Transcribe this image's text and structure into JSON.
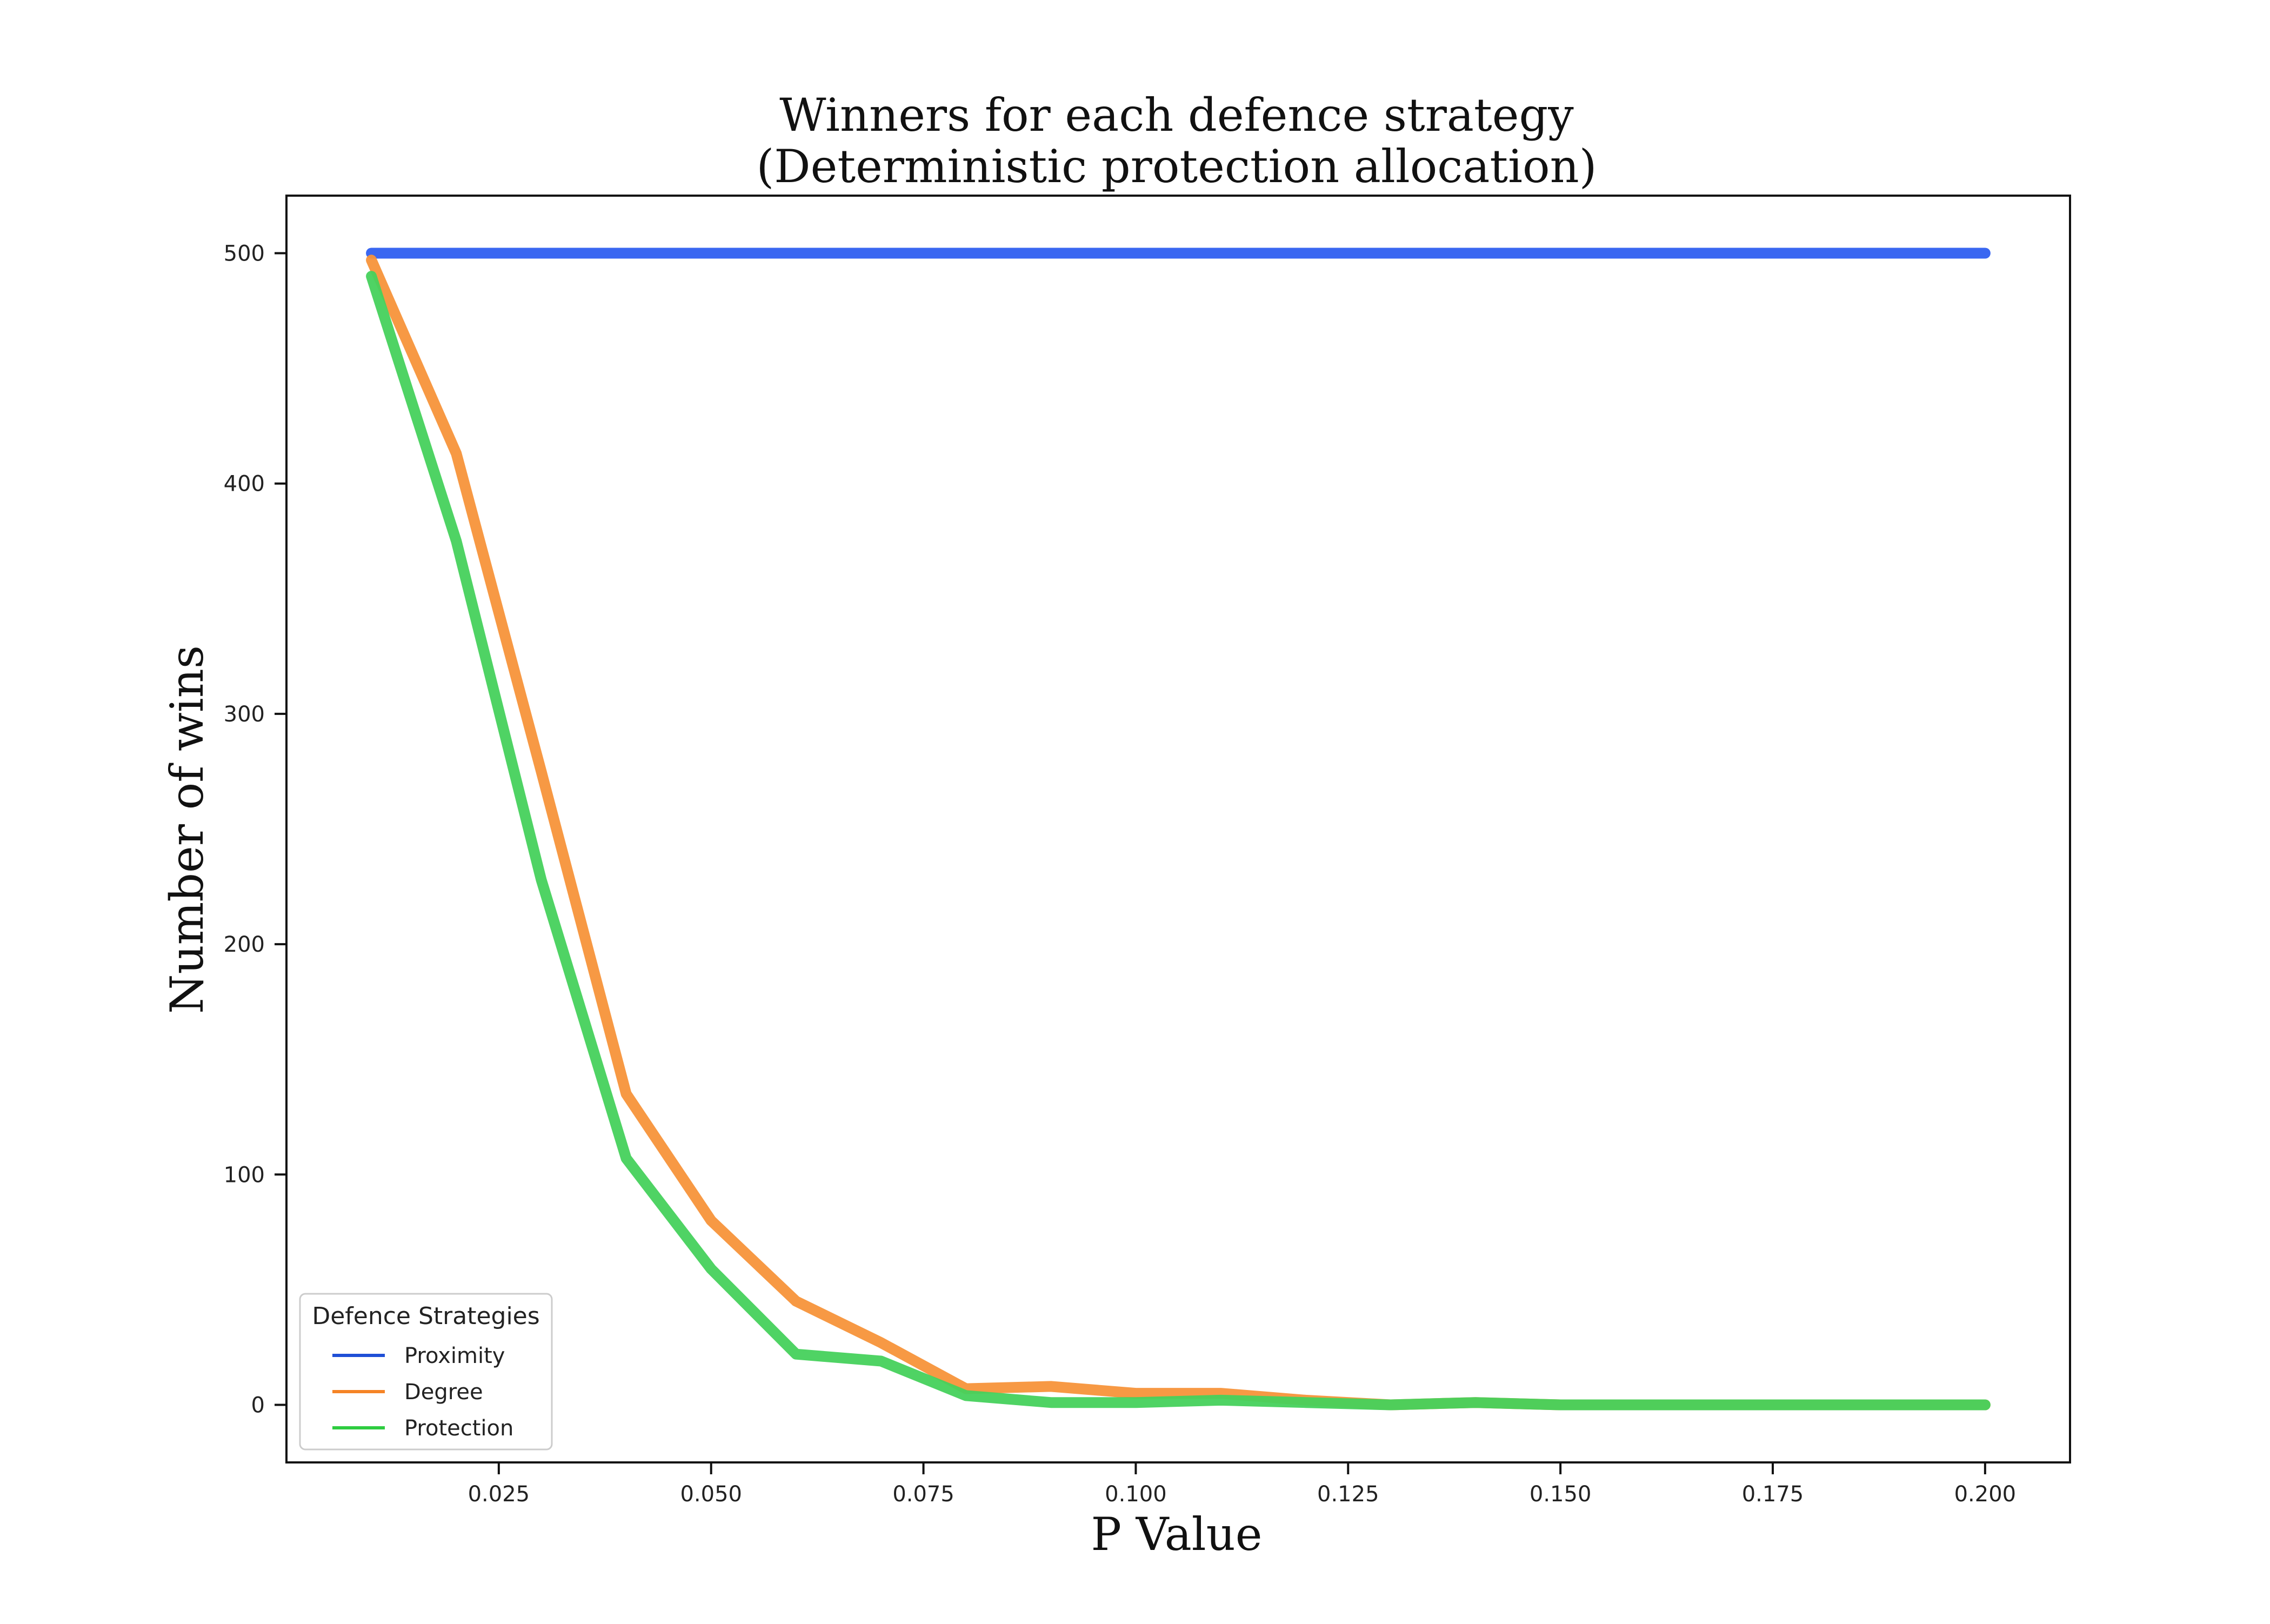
{
  "chart_data": {
    "type": "line",
    "title": "Winners for each defence strategy",
    "subtitle": "(Deterministic protection allocation)",
    "xlabel": "P Value",
    "ylabel": "Number of wins",
    "xlim": [
      0.0,
      0.21
    ],
    "ylim": [
      -25,
      525
    ],
    "xticks": [
      0.025,
      0.05,
      0.075,
      0.1,
      0.125,
      0.15,
      0.175,
      0.2
    ],
    "xtick_labels": [
      "0.025",
      "0.050",
      "0.075",
      "0.100",
      "0.125",
      "0.150",
      "0.175",
      "0.200"
    ],
    "yticks": [
      0,
      100,
      200,
      300,
      400,
      500
    ],
    "ytick_labels": [
      "0",
      "100",
      "200",
      "300",
      "400",
      "500"
    ],
    "grid": false,
    "legend": {
      "title": "Defence Strategies",
      "placement": "lower-left"
    },
    "x": [
      0.01,
      0.02,
      0.03,
      0.04,
      0.05,
      0.06,
      0.07,
      0.08,
      0.09,
      0.1,
      0.11,
      0.12,
      0.13,
      0.14,
      0.15,
      0.16,
      0.17,
      0.18,
      0.19,
      0.2
    ],
    "series": [
      {
        "name": "Proximity",
        "color": "#2f5ff0",
        "legend_color": "#1f4fd6",
        "values": [
          500,
          500,
          500,
          500,
          500,
          500,
          500,
          500,
          500,
          500,
          500,
          500,
          500,
          500,
          500,
          500,
          500,
          500,
          500,
          500
        ]
      },
      {
        "name": "Degree",
        "color": "#f7943a",
        "legend_color": "#f58426",
        "values": [
          497,
          413,
          275,
          135,
          80,
          45,
          27,
          7,
          8,
          5,
          5,
          2,
          0,
          1,
          0,
          0,
          0,
          0,
          0,
          0
        ]
      },
      {
        "name": "Protection",
        "color": "#46d15c",
        "legend_color": "#2ecc40",
        "values": [
          490,
          375,
          228,
          107,
          59,
          22,
          19,
          4,
          1,
          1,
          2,
          1,
          0,
          1,
          0,
          0,
          0,
          0,
          0,
          0
        ]
      }
    ]
  }
}
